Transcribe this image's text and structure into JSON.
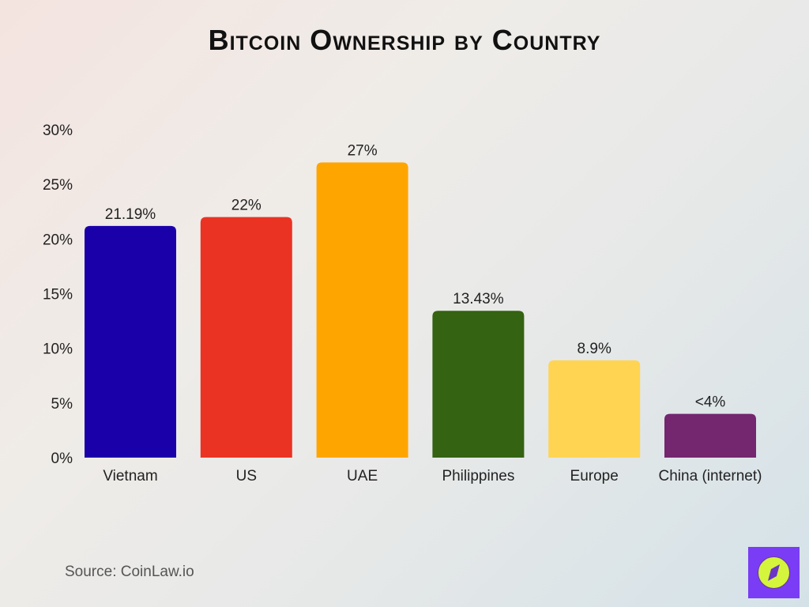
{
  "chart_data": {
    "type": "bar",
    "title": "Bitcoin Ownership by Country",
    "categories": [
      "Vietnam",
      "US",
      "UAE",
      "Philippines",
      "Europe",
      "China (internet)"
    ],
    "values": [
      21.19,
      22,
      27,
      13.43,
      8.9,
      4
    ],
    "data_labels": [
      "21.19%",
      "22%",
      "27%",
      "13.43%",
      "8.9%",
      "<4%"
    ],
    "colors": [
      "#1a00a8",
      "#ea3323",
      "#ffa500",
      "#346311",
      "#ffd452",
      "#74266f"
    ],
    "yticks": [
      "0%",
      "5%",
      "10%",
      "15%",
      "20%",
      "25%",
      "30%"
    ],
    "ylim": [
      0,
      30
    ],
    "xlabel": "",
    "ylabel": "",
    "grid": false,
    "source": "Source: CoinLaw.io"
  },
  "logo": {
    "icon": "compass-icon",
    "bg": "#7a3cf5",
    "fg": "#d4f53c"
  }
}
